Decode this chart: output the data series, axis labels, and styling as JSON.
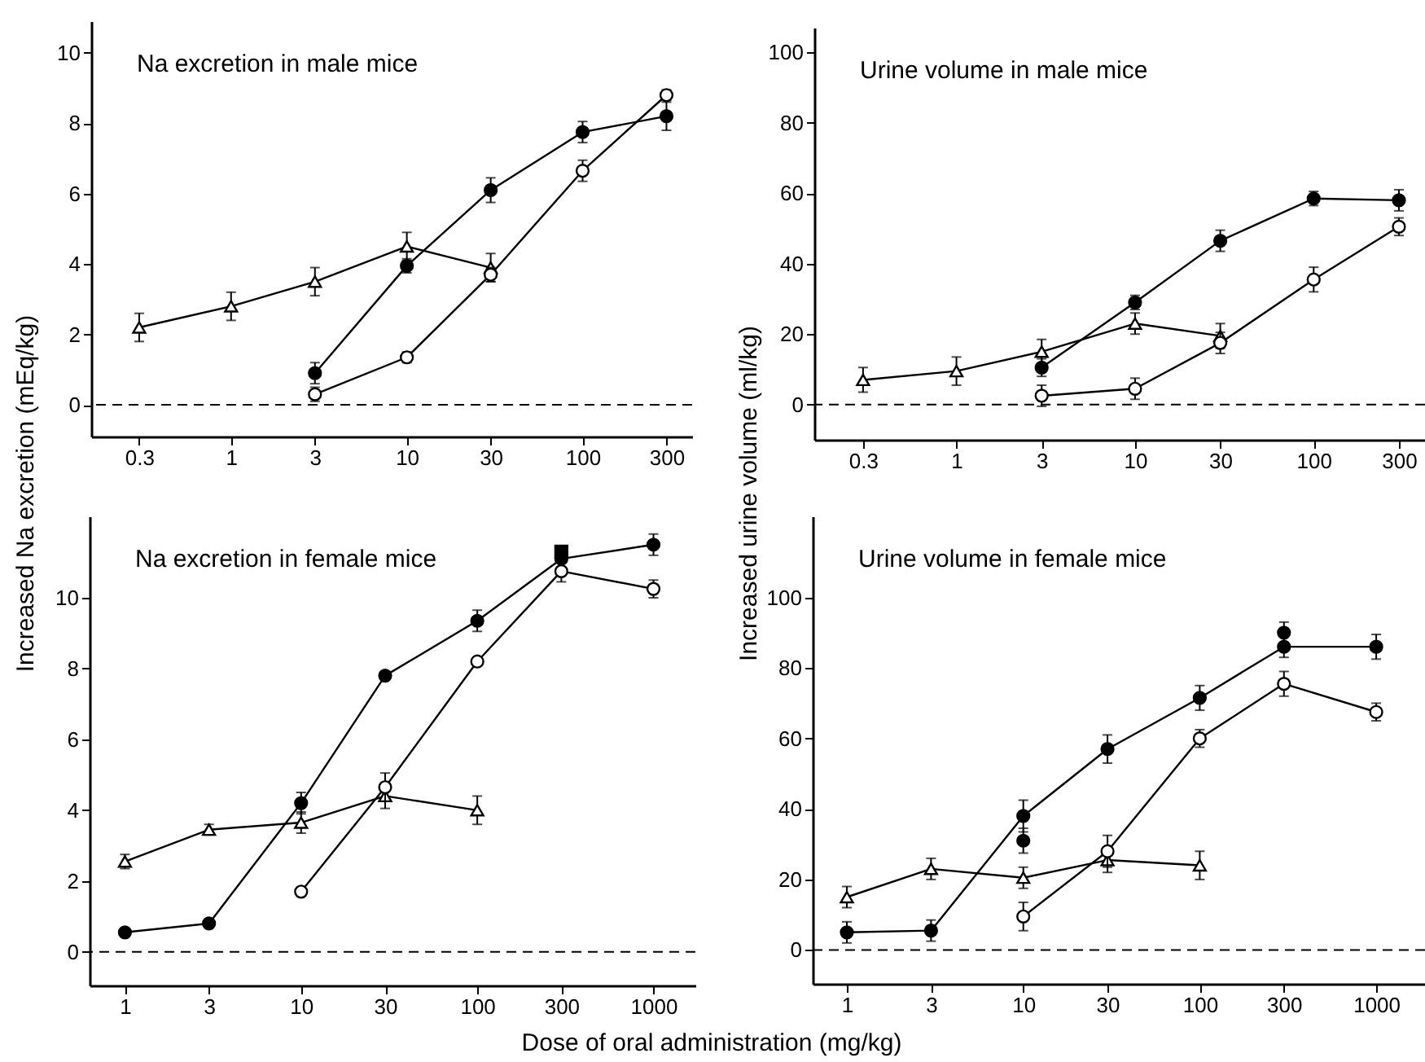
{
  "chart_data": [
    {
      "type": "line",
      "title": "Na excretion in male mice",
      "ylabel": "Increased Na excretion (mEq/kg)",
      "log": "x",
      "xlim": [
        0.16,
        420
      ],
      "xticks": [
        0.3,
        1,
        3,
        10,
        30,
        100,
        300
      ],
      "ylim": [
        -0.9,
        10.9
      ],
      "yticks": [
        0,
        2,
        4,
        6,
        8,
        10
      ],
      "grid": false,
      "line_style": "solid",
      "ref_lines": [
        {
          "axis": "y",
          "value": 0,
          "line_style": "dashed",
          "color": "#000000"
        }
      ],
      "series": [
        {
          "color": "#ffffff",
          "marker": "triangle",
          "x": [
            0.3,
            1,
            3,
            10,
            30
          ],
          "values": [
            2.2,
            2.8,
            3.5,
            4.5,
            3.9
          ],
          "errors": [
            0.4,
            0.4,
            0.4,
            0.4,
            0.4
          ]
        },
        {
          "color": "#000000",
          "marker": "circle",
          "x": [
            3,
            10,
            30,
            100,
            300
          ],
          "values": [
            0.9,
            3.95,
            6.1,
            7.75,
            8.2
          ],
          "errors": [
            0.3,
            0.2,
            0.35,
            0.3,
            0.4
          ]
        },
        {
          "color": "#ffffff",
          "marker": "circle",
          "x": [
            3,
            10,
            30,
            100,
            300
          ],
          "values": [
            0.3,
            1.35,
            3.7,
            6.65,
            8.8
          ],
          "errors": [
            0.2,
            0.15,
            0.2,
            0.3,
            0.15
          ]
        }
      ]
    },
    {
      "type": "line",
      "title": "Urine volume in male mice",
      "ylabel": "Increased urine volume (ml/kg)",
      "log": "x",
      "xlim": [
        0.16,
        420
      ],
      "xticks": [
        0.3,
        1,
        3,
        10,
        30,
        100,
        300
      ],
      "ylim": [
        -10,
        107
      ],
      "yticks": [
        0,
        20,
        40,
        60,
        80,
        100
      ],
      "grid": false,
      "line_style": "solid",
      "ref_lines": [
        {
          "axis": "y",
          "value": 0,
          "line_style": "dashed",
          "color": "#000000"
        }
      ],
      "series": [
        {
          "color": "#ffffff",
          "marker": "triangle",
          "x": [
            0.3,
            1,
            3,
            10,
            30
          ],
          "values": [
            7,
            9.5,
            15,
            23,
            19.5
          ],
          "errors": [
            3.5,
            4,
            3.5,
            3,
            3.5
          ]
        },
        {
          "color": "#000000",
          "marker": "circle",
          "x": [
            3,
            10,
            30,
            100,
            300
          ],
          "values": [
            10.5,
            29,
            46.5,
            58.5,
            58
          ],
          "errors": [
            2.5,
            2,
            3,
            2,
            3
          ]
        },
        {
          "color": "#ffffff",
          "marker": "circle",
          "x": [
            3,
            10,
            30,
            100,
            300
          ],
          "values": [
            2.5,
            4.5,
            17.5,
            35.5,
            50.5
          ],
          "errors": [
            3,
            3,
            3,
            3.5,
            2.5
          ]
        }
      ]
    },
    {
      "type": "line",
      "title": "Na excretion in female mice",
      "xlabel": "Dose of oral administration (mg/kg)",
      "log": "x",
      "xlim": [
        0.63,
        1730
      ],
      "xticks": [
        1,
        3,
        10,
        30,
        100,
        300,
        1000
      ],
      "ylim": [
        -0.95,
        12.3
      ],
      "yticks": [
        0,
        2,
        4,
        6,
        8,
        10
      ],
      "grid": false,
      "line_style": "solid",
      "ref_lines": [
        {
          "axis": "y",
          "value": 0,
          "line_style": "dashed",
          "color": "#000000"
        }
      ],
      "series": [
        {
          "color": "#ffffff",
          "marker": "triangle",
          "x": [
            1,
            3,
            10,
            30,
            100
          ],
          "values": [
            2.55,
            3.45,
            3.65,
            4.4,
            4.0
          ],
          "errors": [
            0.2,
            0.15,
            0.3,
            0.35,
            0.4
          ]
        },
        {
          "color": "#000000",
          "marker": "circle",
          "x": [
            1,
            3,
            10,
            30,
            100,
            300,
            1000
          ],
          "values": [
            0.55,
            0.8,
            4.2,
            7.8,
            9.35,
            11.1,
            11.5
          ],
          "errors": [
            null,
            null,
            0.3,
            null,
            0.3,
            null,
            0.3
          ]
        },
        {
          "type": "scatter",
          "color": "#000000",
          "marker": "square",
          "x": [
            300
          ],
          "values": [
            11.3
          ],
          "errors": [
            null
          ]
        },
        {
          "color": "#ffffff",
          "marker": "circle",
          "x": [
            10,
            30,
            100,
            300,
            1000
          ],
          "values": [
            1.7,
            4.65,
            8.2,
            10.75,
            10.25
          ],
          "errors": [
            null,
            0.4,
            null,
            0.3,
            0.25
          ]
        }
      ]
    },
    {
      "type": "line",
      "title": "Urine volume in female mice",
      "log": "x",
      "xlim": [
        0.64,
        1890
      ],
      "xticks": [
        1,
        3,
        10,
        30,
        100,
        300,
        1000
      ],
      "ylim": [
        -9.6,
        123
      ],
      "yticks": [
        0,
        20,
        40,
        60,
        80,
        100
      ],
      "grid": false,
      "line_style": "solid",
      "ref_lines": [
        {
          "axis": "y",
          "value": 0,
          "line_style": "dashed",
          "color": "#000000"
        }
      ],
      "series": [
        {
          "color": "#ffffff",
          "marker": "triangle",
          "x": [
            1,
            3,
            10,
            30,
            100
          ],
          "values": [
            15,
            23,
            20.5,
            25.5,
            24
          ],
          "errors": [
            3,
            3,
            3,
            3.5,
            4
          ]
        },
        {
          "color": "#000000",
          "marker": "circle",
          "x": [
            1,
            3,
            10,
            30,
            100,
            300,
            1000
          ],
          "values": [
            5,
            5.5,
            38,
            57,
            71.5,
            86,
            86
          ],
          "errors": [
            3,
            3,
            4.5,
            4,
            3.5,
            3,
            3.5
          ]
        },
        {
          "type": "scatter",
          "color": "#000000",
          "marker": "circle",
          "x": [
            10,
            300
          ],
          "values": [
            31,
            90
          ],
          "errors": [
            3.5,
            3
          ]
        },
        {
          "color": "#ffffff",
          "marker": "circle",
          "x": [
            10,
            30,
            100,
            300,
            1000
          ],
          "values": [
            9.5,
            28,
            60,
            75.5,
            67.5
          ],
          "errors": [
            4,
            4.5,
            2.5,
            3.5,
            2.5
          ]
        }
      ]
    }
  ]
}
